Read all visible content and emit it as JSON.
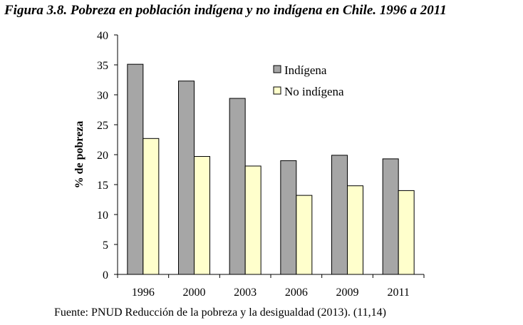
{
  "chart_data": {
    "type": "bar",
    "title": "Figura 3.8. Pobreza en población indígena y no indígena en Chile. 1996 a 2011",
    "xlabel": "",
    "ylabel": "% de pobreza",
    "ylim": [
      0,
      40
    ],
    "yticks": [
      0,
      5,
      10,
      15,
      20,
      25,
      30,
      35,
      40
    ],
    "categories": [
      "1996",
      "2000",
      "2003",
      "2006",
      "2009",
      "2011"
    ],
    "series": [
      {
        "name": "Indígena",
        "color": "#a6a6a6",
        "values": [
          35.1,
          32.3,
          29.4,
          19.0,
          19.9,
          19.3
        ]
      },
      {
        "name": "No indígena",
        "color": "#ffffcc",
        "values": [
          22.7,
          19.7,
          18.1,
          13.2,
          14.8,
          14.0
        ]
      }
    ],
    "grid": false,
    "legend": "top-right",
    "source": "Fuente: PNUD Reducción de la pobreza y la desigualdad (2013). (11,14)"
  }
}
